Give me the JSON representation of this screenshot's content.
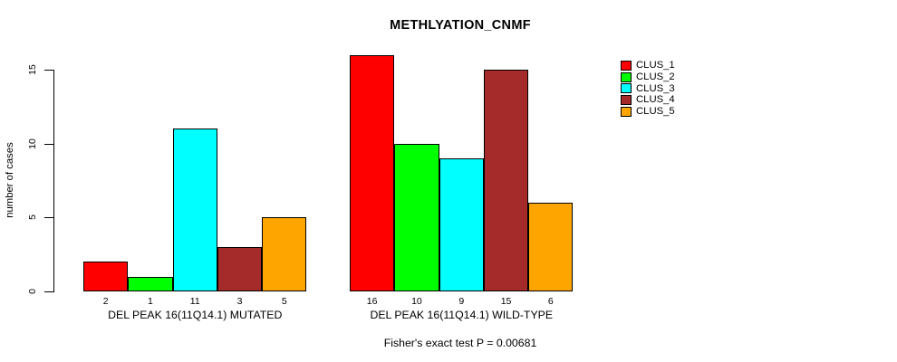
{
  "chart_data": {
    "type": "bar",
    "title": "METHLYATION_CNMF",
    "ylabel": "number of cases",
    "xlabel": "",
    "ylim": [
      0,
      16
    ],
    "yticks": [
      0,
      5,
      10,
      15
    ],
    "grid": false,
    "legend_position": "top-right",
    "clusters": [
      {
        "name": "CLUS_1",
        "color": "#ff0000"
      },
      {
        "name": "CLUS_2",
        "color": "#00ff00"
      },
      {
        "name": "CLUS_3",
        "color": "#00ffff"
      },
      {
        "name": "CLUS_4",
        "color": "#a52a2a"
      },
      {
        "name": "CLUS_5",
        "color": "#ffa500"
      }
    ],
    "groups": [
      {
        "label": "DEL PEAK 16(11Q14.1) MUTATED",
        "values": [
          2,
          1,
          11,
          3,
          5
        ]
      },
      {
        "label": "DEL PEAK 16(11Q14.1) WILD-TYPE",
        "values": [
          16,
          10,
          9,
          15,
          6
        ]
      }
    ],
    "bar_value_labels_shown": true,
    "annotation": "Fisher's exact test P = 0.00681"
  },
  "colors": {
    "background": "#ffffff",
    "axis": "#000000",
    "text": "#000000"
  }
}
